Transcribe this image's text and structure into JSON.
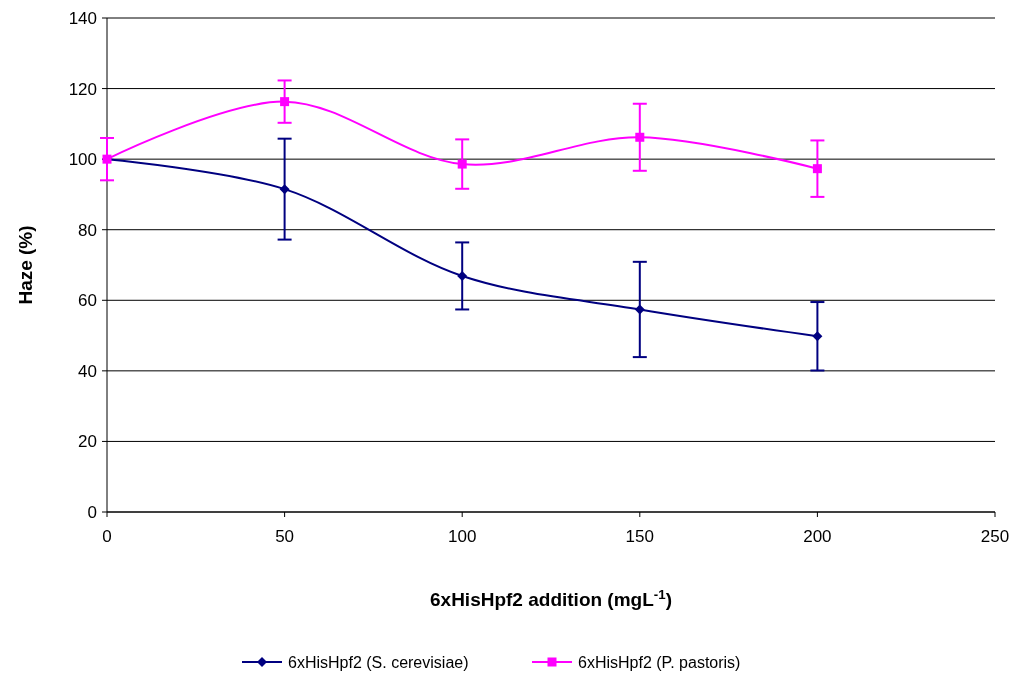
{
  "chart_data": {
    "type": "line",
    "xlabel": "6xHisHpf2 addition (mgL$^{-1}$)",
    "ylabel": "Haze (%)",
    "x": [
      0,
      50,
      100,
      150,
      200
    ],
    "series": [
      {
        "name": "6xHisHpf2 (S. cerevisiae)",
        "color": "#000080",
        "marker": "diamond",
        "values": [
          100,
          91.5,
          66.9,
          57.4,
          49.8
        ],
        "errors": [
          null,
          14.3,
          9.5,
          13.5,
          9.7
        ]
      },
      {
        "name": "6xHisHpf2 (P. pastoris)",
        "color": "#ff00ff",
        "marker": "square",
        "values": [
          100,
          116.3,
          98.6,
          106.2,
          97.3
        ],
        "errors": [
          6,
          6,
          7,
          9.5,
          8
        ]
      }
    ],
    "xlim": [
      0,
      250
    ],
    "xticks": [
      0,
      50,
      100,
      150,
      200,
      250
    ],
    "ylim": [
      0,
      140
    ],
    "yticks": [
      0,
      20,
      40,
      60,
      80,
      100,
      120,
      140
    ],
    "grid": "y",
    "legend": "bottom"
  }
}
